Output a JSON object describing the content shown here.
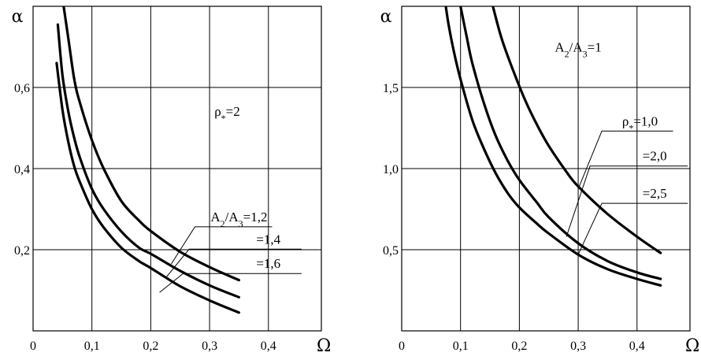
{
  "chart_data": [
    {
      "type": "line",
      "title": "",
      "xlabel": "Ω",
      "ylabel": "α",
      "xlim": [
        0,
        0.49
      ],
      "ylim": [
        0,
        0.8
      ],
      "x_ticks": [
        0,
        0.1,
        0.2,
        0.3,
        0.4
      ],
      "x_tick_labels": [
        "0",
        "0,1",
        "0,2",
        "0,3",
        "0,4"
      ],
      "y_ticks": [
        0.2,
        0.4,
        0.6
      ],
      "y_tick_labels": [
        "0,2",
        "0,4",
        "0,6"
      ],
      "grid": true,
      "annotations": [
        {
          "text": "ρ*=2",
          "segments": [
            {
              "t": "ρ"
            },
            {
              "t": "*",
              "sub": true
            },
            {
              "t": "=2"
            }
          ],
          "label_at": [
            0.33,
            0.53
          ]
        }
      ],
      "series": [
        {
          "name": "A2/A3=1,2",
          "label_segments": [
            {
              "t": "A"
            },
            {
              "t": "2",
              "sub": true
            },
            {
              "t": "/A"
            },
            {
              "t": "3",
              "sub": true
            },
            {
              "t": "=1,2"
            }
          ],
          "label_at": [
            0.35,
            0.27
          ],
          "leader_to": [
            0.235,
            0.165
          ],
          "x": [
            0.052,
            0.06,
            0.07,
            0.08,
            0.1,
            0.12,
            0.15,
            0.18,
            0.2,
            0.25,
            0.3,
            0.35
          ],
          "y": [
            0.8,
            0.72,
            0.62,
            0.56,
            0.47,
            0.4,
            0.32,
            0.272,
            0.246,
            0.195,
            0.157,
            0.125
          ]
        },
        {
          "name": "=1,4",
          "label_segments": [
            {
              "t": "=1,4"
            }
          ],
          "label_at": [
            0.4,
            0.215
          ],
          "leader_to": [
            0.225,
            0.13
          ],
          "x": [
            0.042,
            0.05,
            0.06,
            0.07,
            0.08,
            0.1,
            0.12,
            0.15,
            0.18,
            0.2,
            0.25,
            0.3,
            0.35
          ],
          "y": [
            0.755,
            0.63,
            0.54,
            0.475,
            0.425,
            0.35,
            0.3,
            0.245,
            0.205,
            0.19,
            0.148,
            0.112,
            0.083
          ]
        },
        {
          "name": "=1,6",
          "label_segments": [
            {
              "t": "=1,6"
            }
          ],
          "label_at": [
            0.4,
            0.155
          ],
          "leader_to": [
            0.215,
            0.095
          ],
          "x": [
            0.04,
            0.05,
            0.06,
            0.07,
            0.08,
            0.1,
            0.12,
            0.15,
            0.18,
            0.2,
            0.25,
            0.3,
            0.35
          ],
          "y": [
            0.66,
            0.545,
            0.465,
            0.405,
            0.365,
            0.3,
            0.255,
            0.205,
            0.172,
            0.155,
            0.11,
            0.075,
            0.045
          ]
        }
      ]
    },
    {
      "type": "line",
      "title": "",
      "xlabel": "Ω",
      "ylabel": "α",
      "xlim": [
        0,
        0.49
      ],
      "ylim": [
        0,
        2.0
      ],
      "x_ticks": [
        0,
        0.1,
        0.2,
        0.3,
        0.4
      ],
      "x_tick_labels": [
        "0",
        "0,1",
        "0,2",
        "0,3",
        "0,4"
      ],
      "y_ticks": [
        0.5,
        1.0,
        1.5
      ],
      "y_tick_labels": [
        "0,5",
        "1,0",
        "1,5"
      ],
      "grid": true,
      "annotations": [
        {
          "text": "A2/A3=1",
          "segments": [
            {
              "t": "A"
            },
            {
              "t": "2",
              "sub": true
            },
            {
              "t": "/A"
            },
            {
              "t": "3",
              "sub": true
            },
            {
              "t": "=1"
            }
          ],
          "label_at": [
            0.3,
            1.72
          ]
        }
      ],
      "series": [
        {
          "name": "ρ*=1,0",
          "label_segments": [
            {
              "t": "ρ"
            },
            {
              "t": "*",
              "sub": true
            },
            {
              "t": "=1,0"
            }
          ],
          "label_at": [
            0.405,
            1.265
          ],
          "leader_to": [
            0.3,
            0.875
          ],
          "x": [
            0.155,
            0.17,
            0.19,
            0.21,
            0.23,
            0.25,
            0.28,
            0.3,
            0.35,
            0.4,
            0.44
          ],
          "y": [
            2.0,
            1.8,
            1.6,
            1.42,
            1.27,
            1.14,
            0.98,
            0.89,
            0.72,
            0.58,
            0.48
          ]
        },
        {
          "name": "=2,0",
          "label_segments": [
            {
              "t": "=2,0"
            }
          ],
          "label_at": [
            0.43,
            1.05
          ],
          "leader_to": [
            0.28,
            0.58
          ],
          "x": [
            0.1,
            0.11,
            0.12,
            0.14,
            0.16,
            0.18,
            0.2,
            0.23,
            0.25,
            0.3,
            0.35,
            0.4,
            0.44
          ],
          "y": [
            2.0,
            1.82,
            1.65,
            1.4,
            1.2,
            1.05,
            0.93,
            0.79,
            0.7,
            0.54,
            0.43,
            0.36,
            0.32
          ]
        },
        {
          "name": "=2,5",
          "label_segments": [
            {
              "t": "=2,5"
            }
          ],
          "label_at": [
            0.43,
            0.82
          ],
          "leader_to": [
            0.3,
            0.47
          ],
          "x": [
            0.075,
            0.08,
            0.09,
            0.1,
            0.12,
            0.14,
            0.16,
            0.18,
            0.2,
            0.23,
            0.25,
            0.3,
            0.35,
            0.4,
            0.44
          ],
          "y": [
            2.0,
            1.88,
            1.7,
            1.55,
            1.3,
            1.12,
            0.97,
            0.85,
            0.76,
            0.66,
            0.6,
            0.47,
            0.38,
            0.32,
            0.28
          ]
        }
      ]
    }
  ]
}
